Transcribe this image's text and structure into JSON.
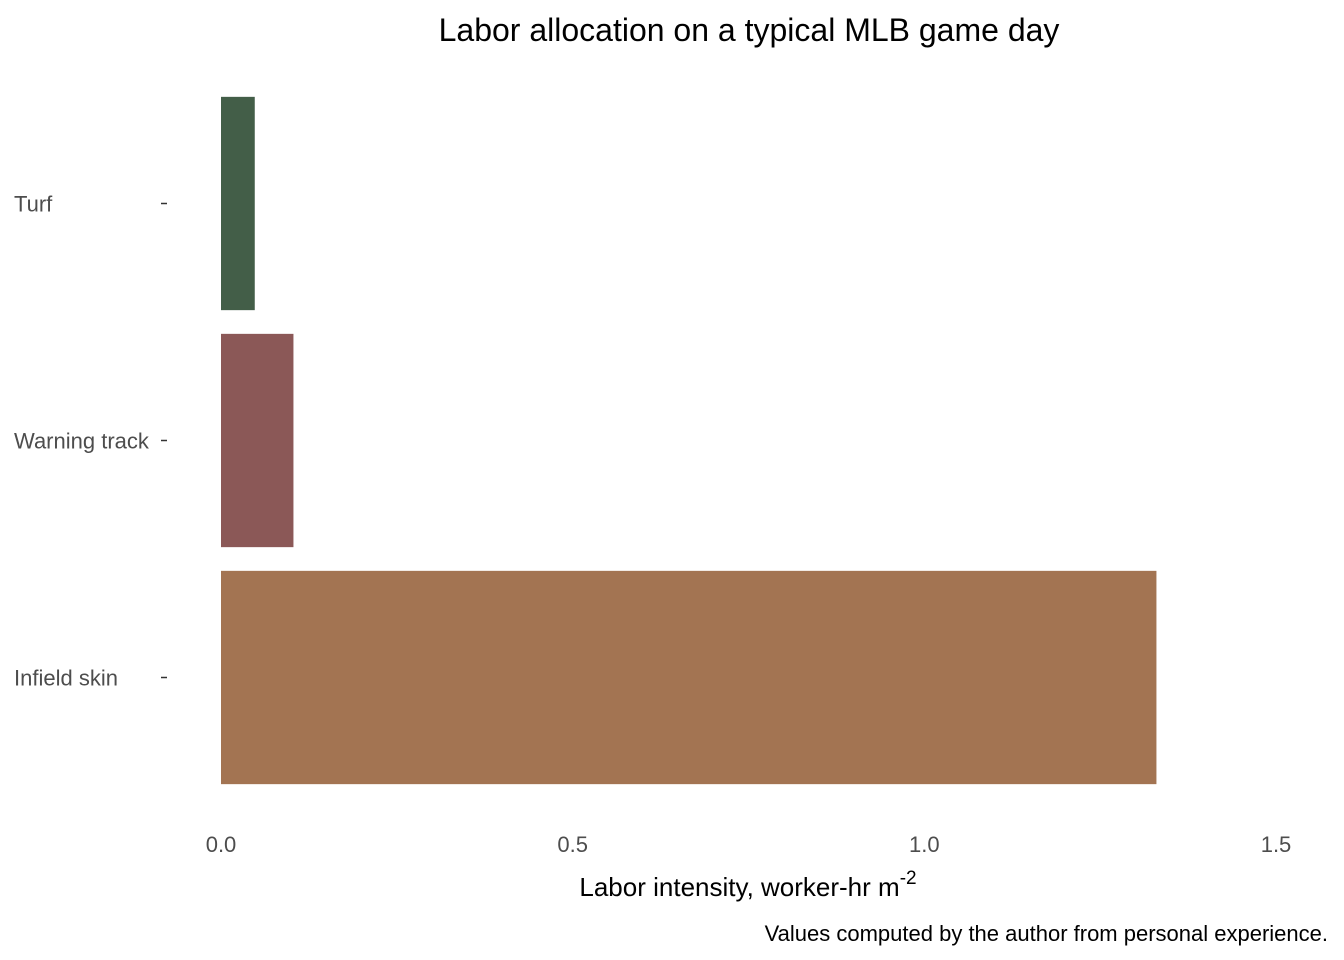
{
  "chart_data": {
    "type": "bar",
    "orientation": "horizontal",
    "title": "Labor allocation on a typical MLB game day",
    "xlabel": "Labor intensity, worker-hr m",
    "xlabel_superscript": "-2",
    "ylabel": "",
    "caption": "Values computed by the author from personal experience.",
    "categories": [
      "Turf",
      "Warning track",
      "Infield skin"
    ],
    "values": [
      0.048,
      0.103,
      1.33
    ],
    "colors": [
      "#435e48",
      "#8b5857",
      "#a37452"
    ],
    "xlim": [
      0,
      1.5
    ],
    "xticks": [
      "0.0",
      "0.5",
      "1.0",
      "1.5"
    ],
    "xtick_values": [
      0,
      0.5,
      1.0,
      1.5
    ],
    "grid": false,
    "legend": "none"
  }
}
